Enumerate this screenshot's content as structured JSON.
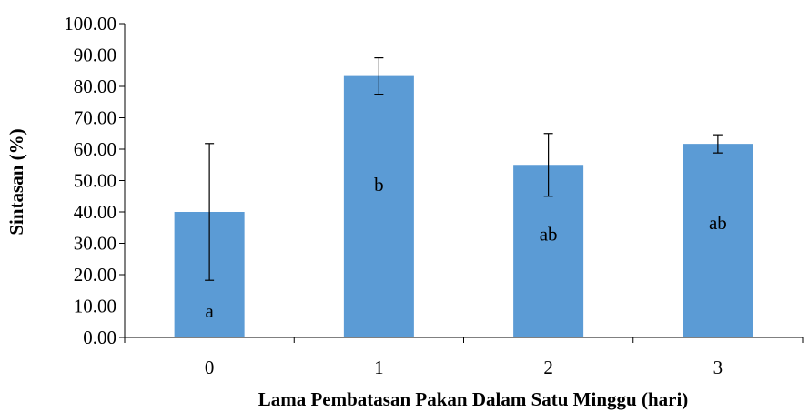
{
  "chart_data": {
    "type": "bar",
    "categories": [
      "0",
      "1",
      "2",
      "3"
    ],
    "values": [
      40.0,
      83.3,
      55.0,
      61.7
    ],
    "error": [
      21.8,
      5.8,
      10.0,
      2.9
    ],
    "significance_labels": [
      "a",
      "b",
      "ab",
      "ab"
    ],
    "xlabel": "Lama Pembatasan Pakan Dalam Satu Minggu (hari)",
    "ylabel": "Sintasan (%)",
    "ylim": [
      0,
      100
    ],
    "ytick_labels": [
      "0.00",
      "10.00",
      "20.00",
      "30.00",
      "40.00",
      "50.00",
      "60.00",
      "70.00",
      "80.00",
      "90.00",
      "100.00"
    ],
    "grid": false,
    "bar_color": "#5B9BD5"
  }
}
